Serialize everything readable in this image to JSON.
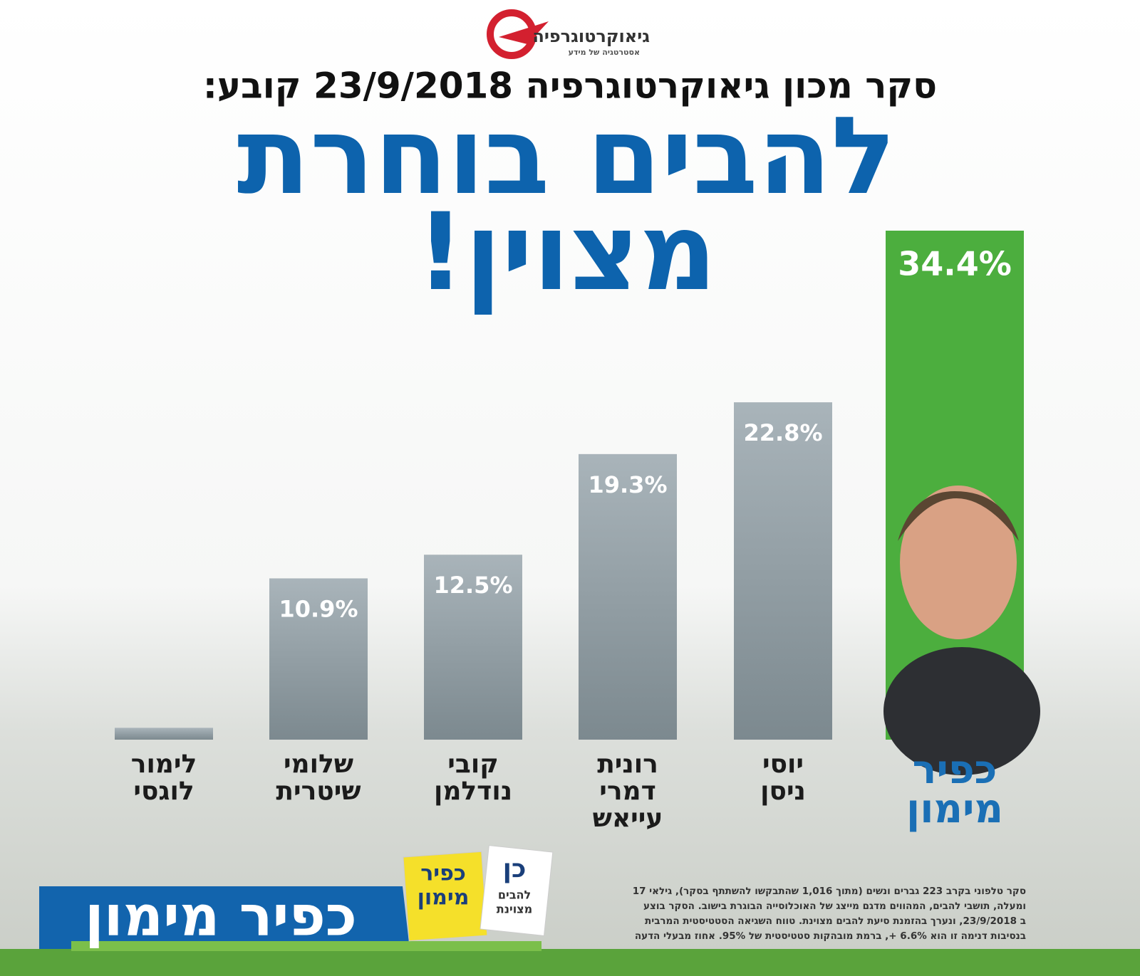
{
  "logo": {
    "name": "גיאוקרטוגרפיה",
    "tagline": "אסטרטגיה של מידע"
  },
  "chart_data": {
    "type": "bar",
    "subtitle": "סקר מכון גיאוקרטוגרפיה 23/9/2018 קובע:",
    "title": [
      "להבים בוחרת",
      "מצוין!"
    ],
    "categories": [
      [
        "כפיר",
        "מימון"
      ],
      [
        "יוסי",
        "ניסן"
      ],
      [
        "רונית",
        "דמרי",
        "עייאש"
      ],
      [
        "קובי",
        "נודלמן"
      ],
      [
        "שלומי",
        "שיטרית"
      ],
      [
        "לימור",
        "לוגסי"
      ]
    ],
    "values": [
      34.4,
      22.8,
      19.3,
      12.5,
      10.9,
      0.8
    ],
    "value_labels": [
      "34.4%",
      "22.8%",
      "19.3%",
      "12.5%",
      "10.9%",
      null
    ],
    "colors": [
      "#4cae3e",
      "#8f9ca3",
      "#8f9ca3",
      "#8f9ca3",
      "#8f9ca3",
      "#8f9ca3"
    ]
  },
  "footer": {
    "banner": "כפיר מימון",
    "ballot_name": [
      "כפיר",
      "מימון"
    ],
    "ballot_yes": "כן",
    "ballot_list": [
      "להבים",
      "מצוינת"
    ],
    "note": [
      "סקר טלפוני בקרב 223 גברים ונשים (מתוך 1,016 שהתבקשו להשתתף בסקר), גילאי 17",
      "ומעלה, תושבי להבים, המהווים מדגם מייצג של האוכלוסייה הבוגרת בישוב. הסקר בוצע",
      "ב 23/9/2018, ונערך בהזמנת סיעת להבים מצוינת. טווח השגיאה הסטטיסטית המרבית",
      "בנסיבות דנימה זו הוא 6.6% +, ברמת מובהקות סטטיסטית של 95%. אחוז מבעלי הדעה"
    ]
  }
}
